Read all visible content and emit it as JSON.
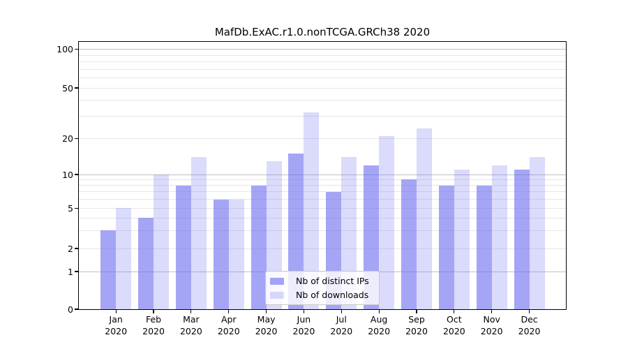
{
  "title": "MafDb.ExAC.r1.0.nonTCGA.GRCh38 2020",
  "legend": {
    "items": [
      {
        "label": "Nb of distinct IPs",
        "series": "distinct-ips"
      },
      {
        "label": "Nb of downloads",
        "series": "downloads"
      }
    ]
  },
  "chart_data": {
    "type": "bar",
    "title": "MafDb.ExAC.r1.0.nonTCGA.GRCh38 2020",
    "categories": [
      "Jan",
      "Feb",
      "Mar",
      "Apr",
      "May",
      "Jun",
      "Jul",
      "Aug",
      "Sep",
      "Oct",
      "Nov",
      "Dec"
    ],
    "category_year": "2020",
    "series": [
      {
        "name": "Nb of distinct IPs",
        "key": "distinct-ips",
        "values": [
          3,
          4,
          8,
          6,
          8,
          15,
          7,
          12,
          9,
          8,
          8,
          11
        ]
      },
      {
        "name": "Nb of downloads",
        "key": "downloads",
        "values": [
          5,
          10,
          14,
          6,
          13,
          32,
          14,
          21,
          24,
          11,
          12,
          14
        ]
      }
    ],
    "xlabel": "",
    "ylabel": "",
    "yscale": "symlog",
    "ylim": [
      0,
      115
    ],
    "y_axis_ticks": [
      0,
      1,
      2,
      5,
      10,
      20,
      50,
      100
    ],
    "y_major_gridlines": [
      1,
      10,
      100
    ],
    "y_minor_gridlines": [
      2,
      3,
      4,
      5,
      6,
      7,
      8,
      9,
      20,
      30,
      40,
      50,
      60,
      70,
      80,
      90
    ],
    "grid": true,
    "legend_position": "lower center"
  },
  "colors": {
    "bar_distinct_ips": "rgba(110,110,240,0.62)",
    "bar_downloads": "rgba(110,110,240,0.25)",
    "grid_major": "#c0c0c0",
    "grid_minor": "#e6e6e6",
    "axis": "#000000",
    "background": "#ffffff"
  }
}
